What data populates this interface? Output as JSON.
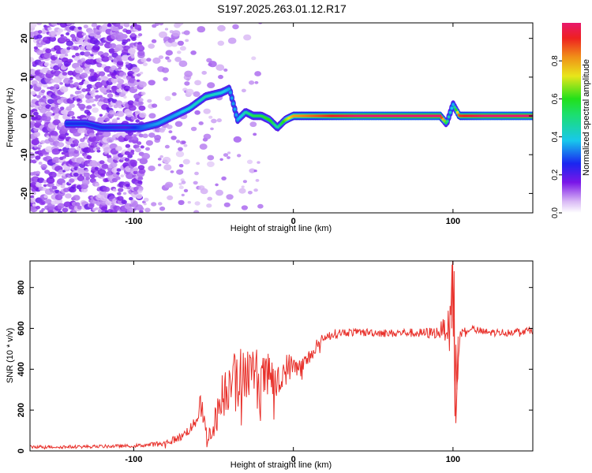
{
  "figure_title": "S197.2025.263.01.12.R17",
  "colors": {
    "snr_line": "#e8302a",
    "ridge": "#d6185e",
    "background": "#ffffff"
  },
  "chart_data": [
    {
      "type": "heatmap",
      "title": "S197.2025.263.01.12.R17",
      "xlabel": "Height of straight line (km)",
      "ylabel": "Frequency (Hz)",
      "xlim": [
        -165,
        150
      ],
      "ylim": [
        -25,
        24
      ],
      "xticks": [
        -100,
        0,
        100
      ],
      "yticks": [
        -20,
        -10,
        0,
        10,
        20
      ],
      "colorbar": {
        "label": "Normalized spectral amplitude",
        "range": [
          0,
          1
        ],
        "ticks": [
          0.0,
          0.2,
          0.4,
          0.6,
          0.8
        ],
        "tick_labels": [
          "0.0",
          "0.2",
          "0.4",
          "0.6",
          "0.8"
        ]
      },
      "ridge": {
        "x": [
          -140,
          -130,
          -120,
          -105,
          -95,
          -85,
          -75,
          -65,
          -55,
          -45,
          -40,
          -35,
          -30,
          -25,
          -20,
          -15,
          -10,
          -5,
          0,
          10,
          20,
          30,
          40,
          60,
          80,
          92,
          96,
          100,
          104,
          120,
          150
        ],
        "y": [
          -2,
          -2,
          -3,
          -3,
          -3,
          -2,
          0,
          2,
          5,
          6,
          7,
          -1,
          1,
          0,
          0,
          -1,
          -3,
          -1,
          0,
          0,
          0,
          0,
          0,
          0,
          0,
          0,
          -2,
          3,
          0,
          0,
          0
        ],
        "amplitude": [
          0.25,
          0.25,
          0.25,
          0.2,
          0.3,
          0.35,
          0.35,
          0.4,
          0.45,
          0.4,
          0.35,
          0.35,
          0.45,
          0.55,
          0.55,
          0.6,
          0.45,
          0.65,
          0.8,
          0.85,
          0.9,
          0.95,
          1.0,
          1.0,
          1.0,
          1.0,
          0.5,
          0.35,
          0.9,
          1.0,
          1.0
        ]
      }
    },
    {
      "type": "line",
      "xlabel": "Height of straight line (km)",
      "ylabel": "SNR (10 * v/v)",
      "xlim": [
        -165,
        150
      ],
      "ylim": [
        0,
        930
      ],
      "xticks": [
        -100,
        0,
        100
      ],
      "yticks": [
        0,
        200,
        400,
        600,
        800
      ],
      "series": [
        {
          "name": "SNR",
          "x": [
            -165,
            -140,
            -120,
            -100,
            -90,
            -80,
            -70,
            -62,
            -58,
            -54,
            -50,
            -45,
            -40,
            -37,
            -35,
            -32,
            -28,
            -24,
            -20,
            -15,
            -10,
            -5,
            0,
            5,
            10,
            15,
            20,
            25,
            30,
            40,
            50,
            60,
            70,
            80,
            90,
            95,
            98,
            100,
            101,
            102,
            104,
            110,
            120,
            130,
            140,
            150
          ],
          "y": [
            20,
            20,
            22,
            25,
            30,
            40,
            70,
            130,
            230,
            60,
            120,
            260,
            330,
            500,
            280,
            420,
            380,
            400,
            350,
            380,
            320,
            400,
            420,
            400,
            460,
            520,
            560,
            570,
            580,
            580,
            580,
            575,
            580,
            575,
            580,
            600,
            620,
            900,
            300,
            180,
            560,
            600,
            580,
            580,
            585,
            590
          ],
          "noise_amplitude": [
            8,
            8,
            8,
            8,
            10,
            15,
            20,
            30,
            60,
            40,
            60,
            120,
            130,
            150,
            130,
            150,
            130,
            120,
            110,
            100,
            90,
            80,
            60,
            60,
            40,
            30,
            25,
            25,
            20,
            20,
            20,
            20,
            20,
            25,
            30,
            60,
            80,
            120,
            120,
            80,
            40,
            20,
            20,
            18,
            18,
            18
          ]
        }
      ]
    }
  ]
}
